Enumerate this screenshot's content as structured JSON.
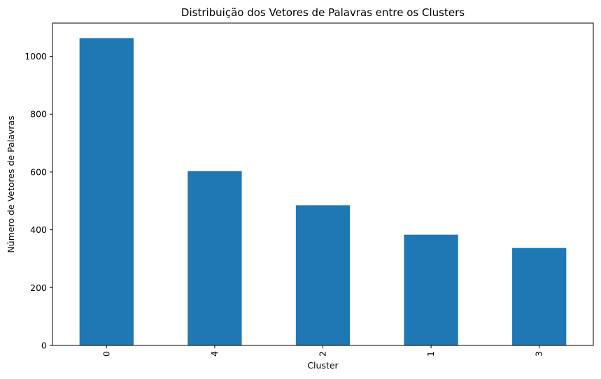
{
  "chart_data": {
    "type": "bar",
    "title": "Distribuição dos Vetores de Palavras entre os Clusters",
    "xlabel": "Cluster",
    "ylabel": "Número de Vetores de Palavras",
    "categories": [
      "0",
      "4",
      "2",
      "1",
      "3"
    ],
    "values": [
      1063,
      603,
      485,
      383,
      337
    ],
    "ylim": [
      0,
      1115
    ],
    "yticks": [
      0,
      200,
      400,
      600,
      800,
      1000
    ],
    "grid": false,
    "bar_color": "#1f77b4",
    "xtick_rotation": 90
  }
}
